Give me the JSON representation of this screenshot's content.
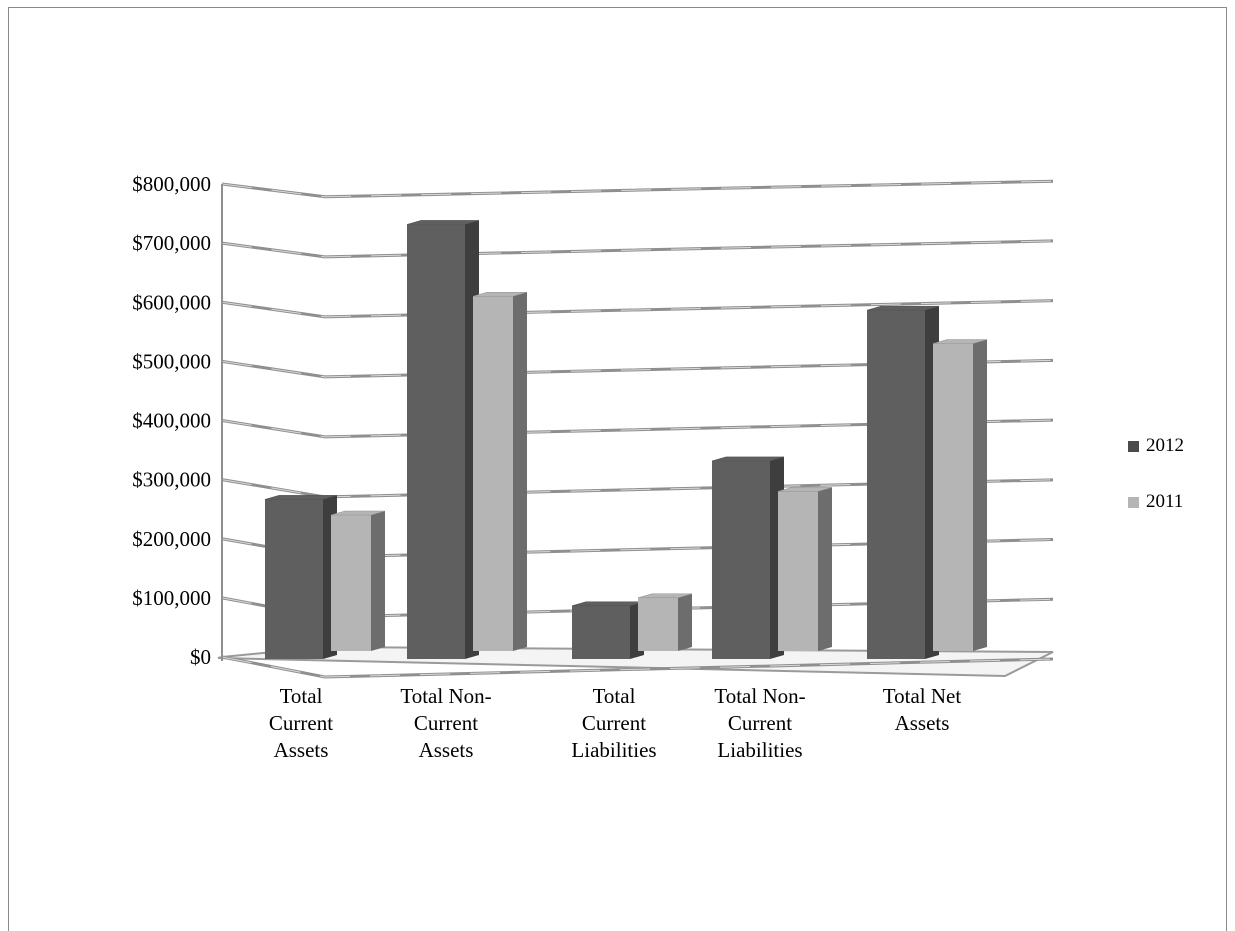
{
  "chart_data": {
    "type": "bar",
    "categories": [
      [
        "Total",
        "Current",
        "Assets"
      ],
      [
        "Total Non-",
        "Current",
        "Assets"
      ],
      [
        "Total",
        "Current",
        "Liabilities"
      ],
      [
        "Total Non-",
        "Current",
        "Liabilities"
      ],
      [
        "Total Net",
        "Assets"
      ]
    ],
    "series": [
      {
        "name": "2012",
        "color": "#5f5f5f",
        "values": [
          270000,
          735000,
          90000,
          335000,
          590000
        ]
      },
      {
        "name": "2011",
        "color": "#b5b5b5",
        "values": [
          230000,
          600000,
          90000,
          270000,
          520000
        ]
      }
    ],
    "ylim": [
      0,
      800000
    ],
    "yticks": [
      "$0",
      "$100,000",
      "$200,000",
      "$300,000",
      "$400,000",
      "$500,000",
      "$600,000",
      "$700,000",
      "$800,000"
    ],
    "grid": true,
    "legend_position": "right",
    "three_d": true
  }
}
